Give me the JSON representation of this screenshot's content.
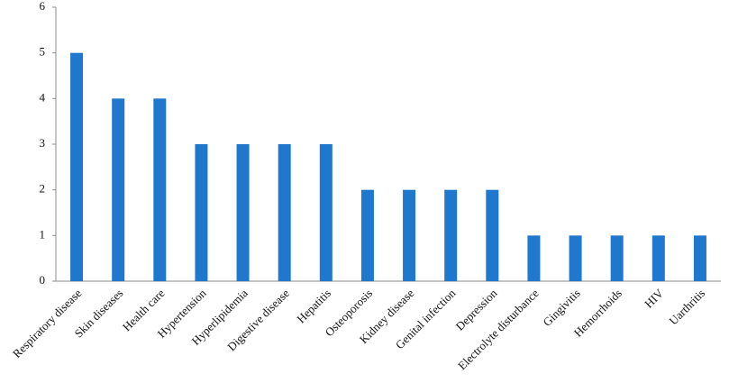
{
  "chart_data": {
    "type": "bar",
    "categories": [
      "Respiratory disease",
      "Skin diseases",
      "Health care",
      "Hypertension",
      "Hyperlipidemia",
      "Digestive disease",
      "Hepatitis",
      "Osteoporosis",
      "Kidney disease",
      "Genital infection",
      "Depression",
      "Electrolyte disturbance",
      "Gingivitis",
      "Hemorrhoids",
      "HIV",
      "Uarthritis"
    ],
    "values": [
      5,
      4,
      4,
      3,
      3,
      3,
      3,
      2,
      2,
      2,
      2,
      1,
      1,
      1,
      1,
      1
    ],
    "color": "#1f78cd",
    "ylim": [
      0,
      6
    ],
    "yticks": [
      0,
      1,
      2,
      3,
      4,
      5,
      6
    ],
    "grid": false
  }
}
